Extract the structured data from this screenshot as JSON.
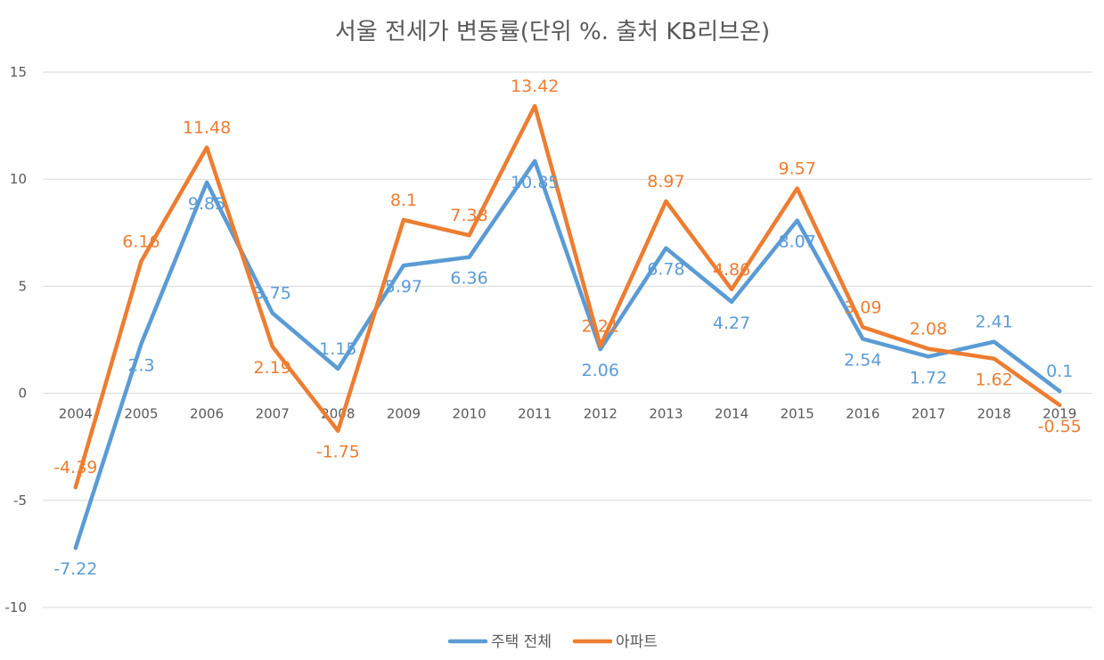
{
  "chart_data": {
    "type": "line",
    "title": "서울 전세가 변동률(단위 %. 출처 KB리브온)",
    "categories": [
      "2004",
      "2005",
      "2006",
      "2007",
      "2008",
      "2009",
      "2010",
      "2011",
      "2012",
      "2013",
      "2014",
      "2015",
      "2016",
      "2017",
      "2018",
      "2019"
    ],
    "ylim": [
      -10,
      15
    ],
    "yticks": [
      -10,
      -5,
      0,
      5,
      10,
      15
    ],
    "grid": true,
    "legend_position": "bottom",
    "series": [
      {
        "name": "주택 전체",
        "color": "#5b9bd5",
        "values": [
          -7.22,
          2.3,
          9.85,
          3.75,
          1.15,
          5.97,
          6.36,
          10.85,
          2.06,
          6.78,
          4.27,
          8.07,
          2.54,
          1.72,
          2.41,
          0.1
        ]
      },
      {
        "name": "아파트",
        "color": "#ed7d31",
        "values": [
          -4.39,
          6.16,
          11.48,
          2.19,
          -1.75,
          8.1,
          7.38,
          13.42,
          2.21,
          8.97,
          4.86,
          9.57,
          3.09,
          2.08,
          1.62,
          -0.55
        ]
      }
    ]
  }
}
